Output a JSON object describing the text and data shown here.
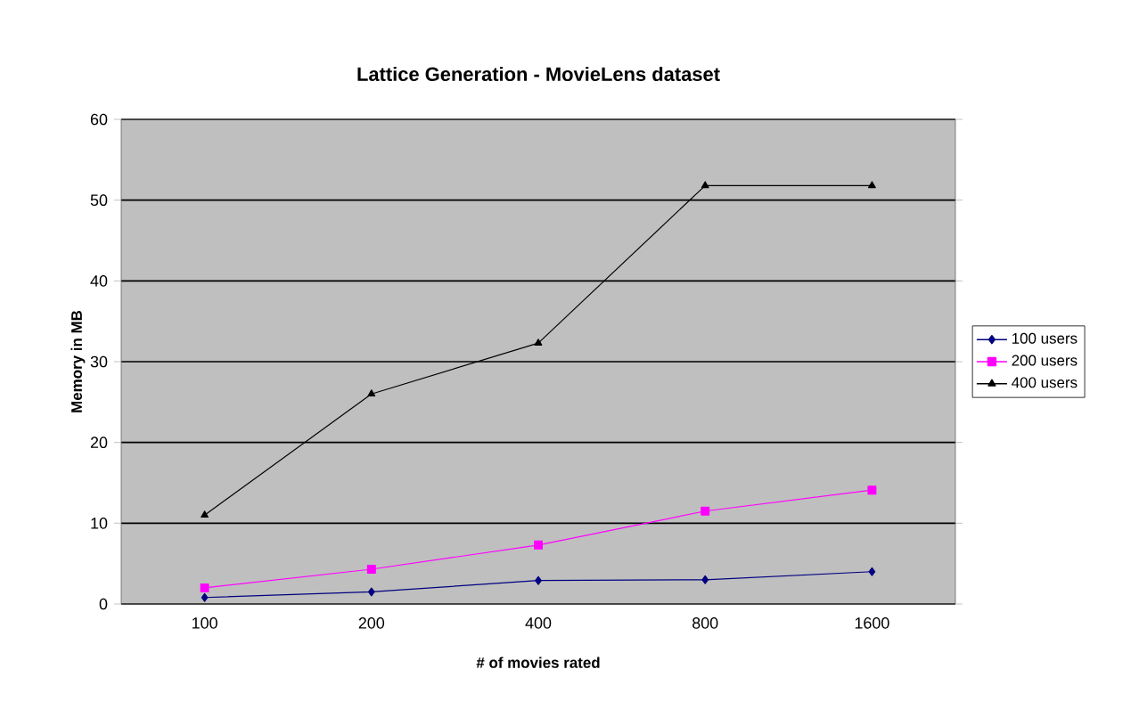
{
  "chart_data": {
    "type": "line",
    "title": "Lattice Generation - MovieLens dataset",
    "xlabel": "# of movies rated",
    "ylabel": "Memory in MB",
    "categories": [
      "100",
      "200",
      "400",
      "800",
      "1600"
    ],
    "series": [
      {
        "name": "100 users",
        "color": "#000080",
        "marker": "diamond",
        "values": [
          0.8,
          1.5,
          2.9,
          3,
          4
        ]
      },
      {
        "name": "200 users",
        "color": "#ff00ff",
        "marker": "square",
        "values": [
          2,
          4.3,
          7.3,
          11.5,
          14.1
        ]
      },
      {
        "name": "400 users",
        "color": "#000000",
        "marker": "triangle",
        "values": [
          11,
          26,
          32.3,
          51.8,
          51.8
        ]
      }
    ],
    "ylim": [
      0,
      60
    ],
    "yticks": [
      0,
      10,
      20,
      30,
      40,
      50,
      60
    ],
    "grid": "y",
    "legend": "right",
    "line_style": "solid"
  }
}
